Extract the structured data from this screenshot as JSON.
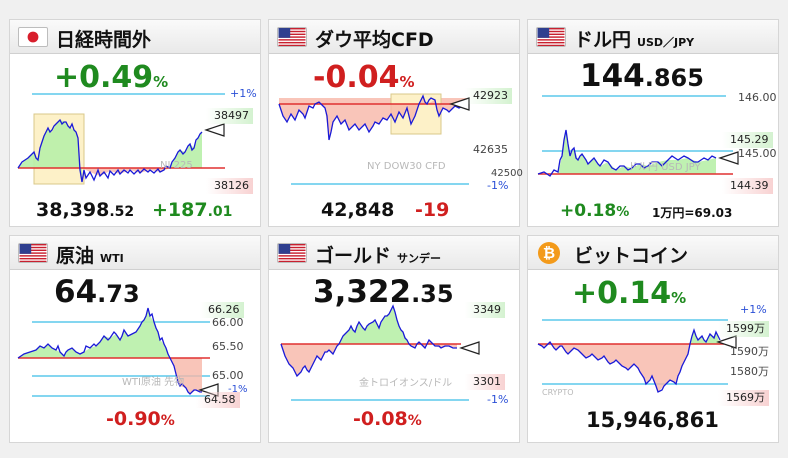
{
  "cards": [
    {
      "title": "日経時間外",
      "change_pct": "+0.49",
      "pct_sign": "%",
      "plus_label": "+1%",
      "high_label": "38497",
      "low_label": "38126",
      "watermark": "NI 225",
      "price_main": "38,398",
      "price_dec": ".52",
      "change_abs_main": "+187",
      "change_abs_dec": ".01"
    },
    {
      "title": "ダウ平均CFD",
      "change_pct": "-0.04",
      "pct_sign": "%",
      "high_label": "42923",
      "low_label": "42635",
      "level_label": "42500",
      "minus_label": "-1%",
      "watermark": "NY DOW30 CFD",
      "price": "42,848",
      "change_abs": "-19"
    },
    {
      "title": "ドル円",
      "subtitle": "USD／JPY",
      "price_main": "144",
      "price_dec": ".865",
      "level_top": "146.00",
      "level_mid": "145.00",
      "high_label": "145.29",
      "low_label": "144.39",
      "watermark": "ドル円 USD JPY",
      "change_pct": "+0.18",
      "pct_sign": "%",
      "note": "1万円=69.03"
    },
    {
      "title": "原油",
      "subtitle": "WTI",
      "price_main": "64",
      "price_dec": ".73",
      "high_label": "66.26",
      "level_66": "66.00",
      "level_655": "65.50",
      "level_65": "65.00",
      "low_label": "64.58",
      "minus_label": "-1%",
      "watermark": "WTI原油 先物",
      "change_pct": "-0.90",
      "pct_sign": "%"
    },
    {
      "title": "ゴールド",
      "subtitle": "サンデー",
      "price_main": "3,322",
      "price_dec": ".35",
      "high_label": "3349",
      "low_label": "3301",
      "minus_label": "-1%",
      "watermark": "金トロイオンス/ドル",
      "change_pct": "-0.08",
      "pct_sign": "%"
    },
    {
      "title": "ビットコイン",
      "change_pct": "+0.14",
      "pct_sign": "%",
      "plus_label": "+1%",
      "high_label": "1599万",
      "level_1590": "1590万",
      "level_1580": "1580万",
      "low_label": "1569万",
      "watermark": "CRYPTO",
      "price": "15,946,861"
    }
  ],
  "colors": {
    "up": "#1f8a1f",
    "down": "#d01f1f",
    "line": "#1a1ad8",
    "base": "#e03030",
    "band": "#3bbde8"
  },
  "icons": [
    "japan-flag-icon",
    "us-flag-icon",
    "bitcoin-icon",
    "current-price-arrow-icon"
  ]
}
